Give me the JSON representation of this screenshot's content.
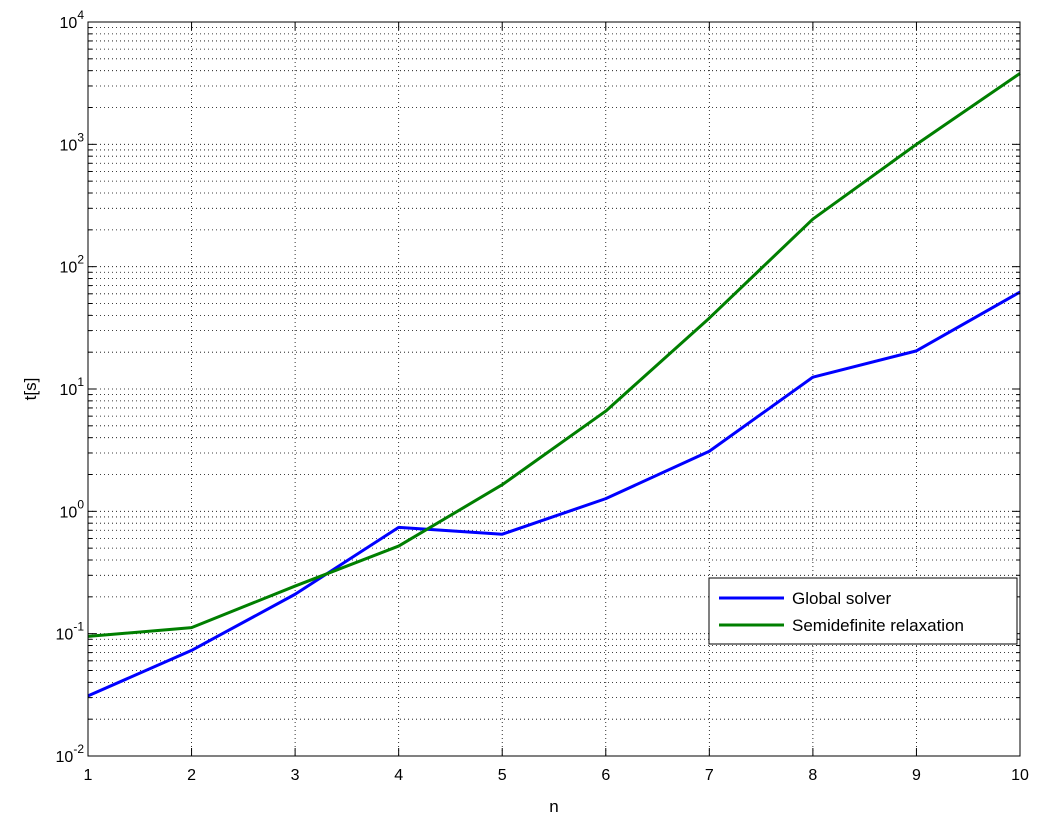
{
  "chart_data": {
    "type": "line",
    "title": "",
    "xlabel": "n",
    "ylabel": "t[s]",
    "x": [
      1,
      2,
      3,
      4,
      5,
      6,
      7,
      8,
      9,
      10
    ],
    "xlim": [
      1,
      10
    ],
    "ylim": [
      0.01,
      10000
    ],
    "yscale": "log",
    "grid": true,
    "legend_position": "right-center",
    "x_tick_labels": [
      "1",
      "2",
      "3",
      "4",
      "5",
      "6",
      "7",
      "8",
      "9",
      "10"
    ],
    "y_ticks": [
      {
        "base": "10",
        "exp": "-2"
      },
      {
        "base": "10",
        "exp": "-1"
      },
      {
        "base": "10",
        "exp": "0"
      },
      {
        "base": "10",
        "exp": "1"
      },
      {
        "base": "10",
        "exp": "2"
      },
      {
        "base": "10",
        "exp": "3"
      },
      {
        "base": "10",
        "exp": "4"
      }
    ],
    "series": [
      {
        "name": "Global solver",
        "color": "#0000ff",
        "values": [
          0.031,
          0.073,
          0.21,
          0.74,
          0.65,
          1.27,
          3.1,
          12.5,
          20.5,
          62
        ]
      },
      {
        "name": "Semidefinite relaxation",
        "color": "#007f00",
        "values": [
          0.095,
          0.112,
          0.245,
          0.52,
          1.65,
          6.6,
          38,
          245,
          1000,
          3800
        ]
      }
    ]
  }
}
